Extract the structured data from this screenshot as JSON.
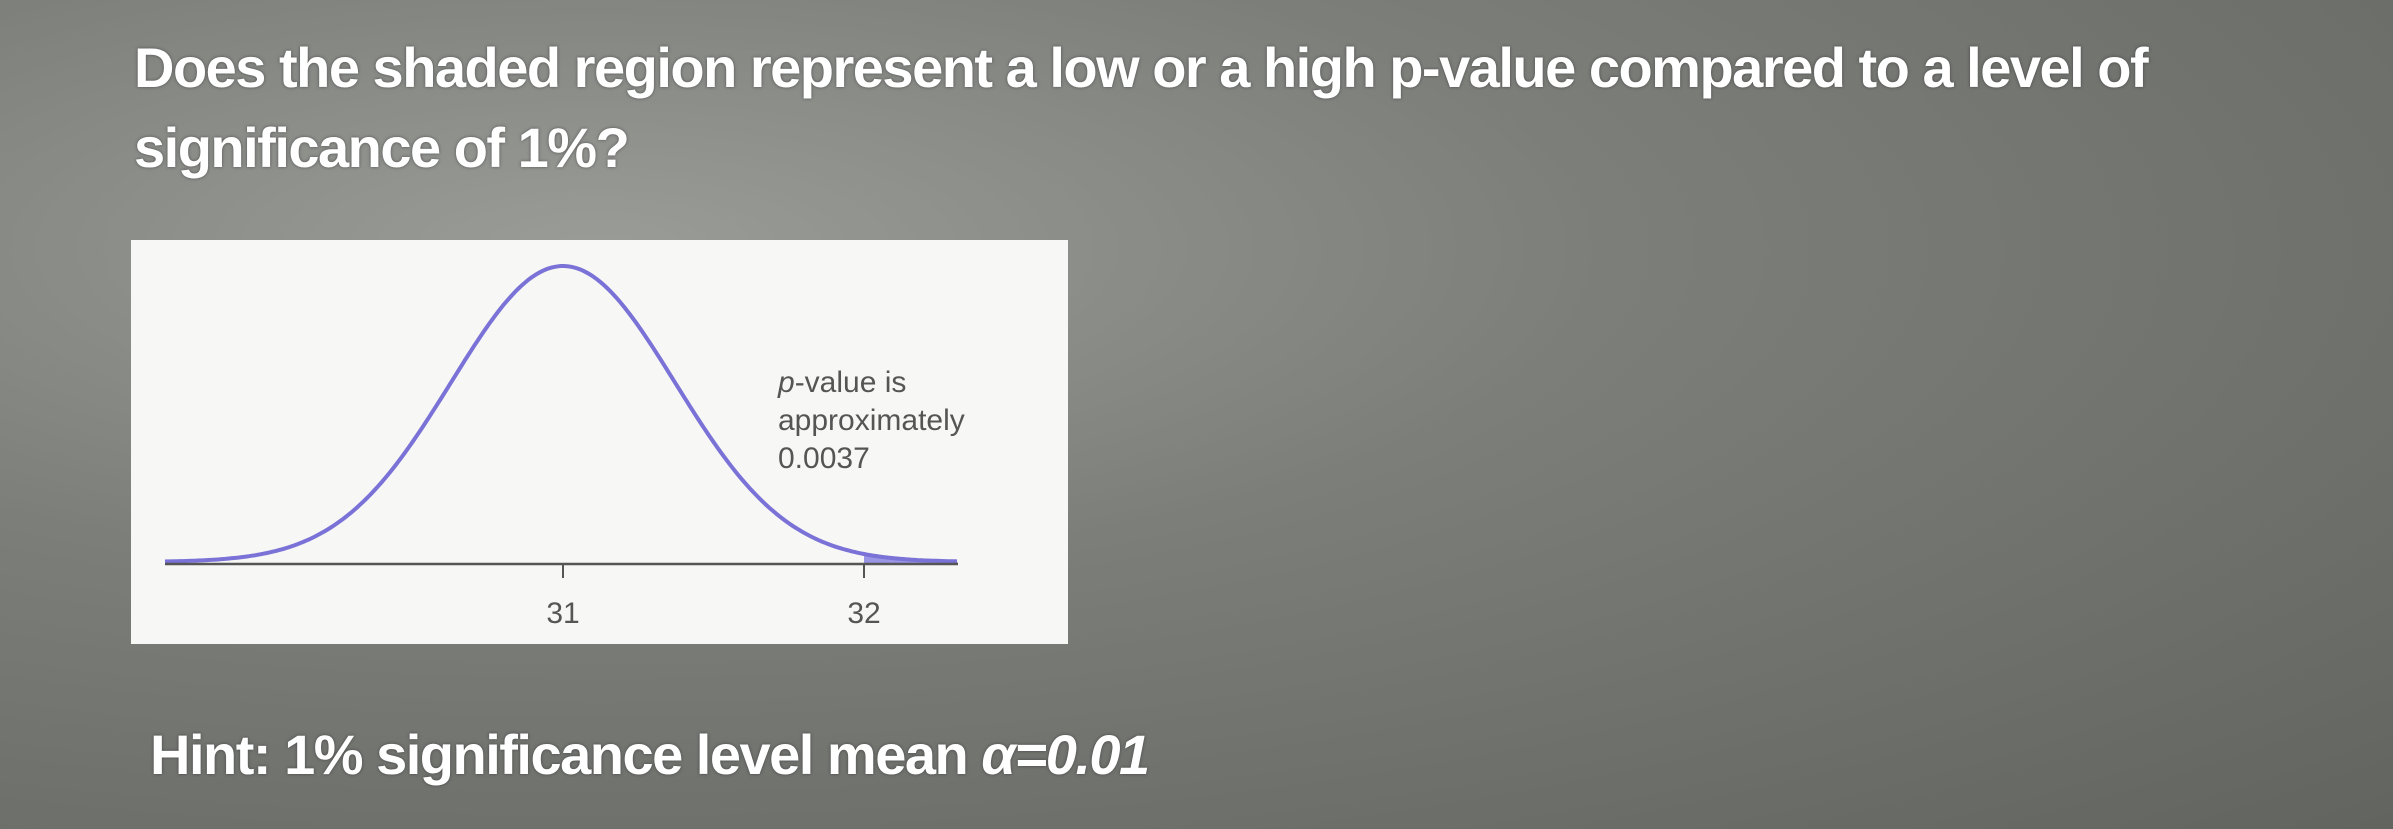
{
  "question": "Does the shaded region represent a low or a high p-value compared to a level of significance of 1%?",
  "figure": {
    "annotation": {
      "italic": "p",
      "line1": "-value is",
      "line2": "approximately",
      "line3": "0.0037"
    },
    "ticks": [
      "31",
      "32"
    ]
  },
  "hint": {
    "label": "Hint:",
    "text": "1% significance level mean",
    "symbol": "α",
    "value": "=0.01"
  }
}
